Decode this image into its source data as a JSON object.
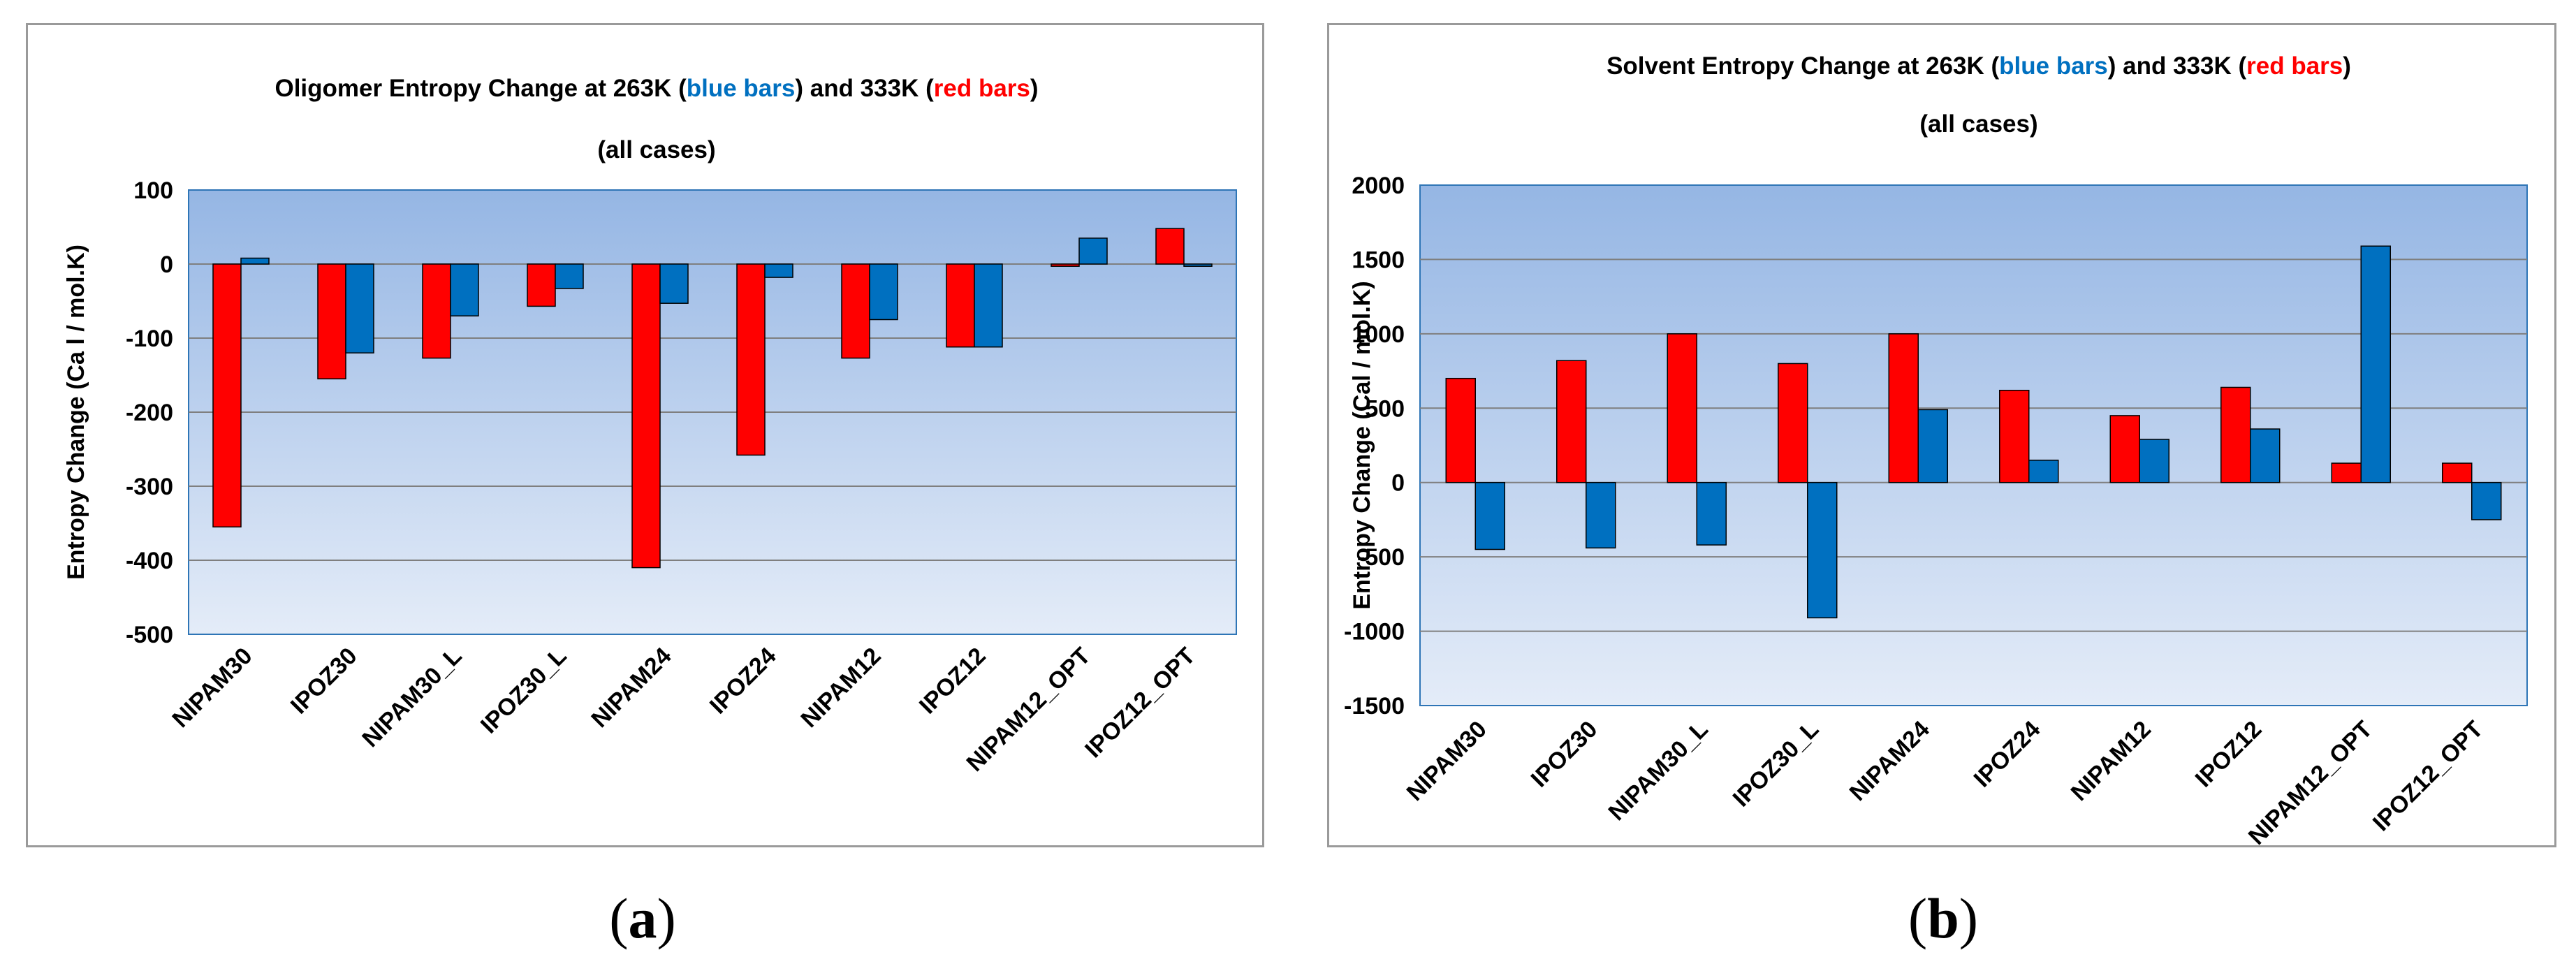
{
  "colors": {
    "red_series": "#ff0000",
    "blue_series": "#0070c0",
    "plot_top": "#95b6e4",
    "plot_bottom": "#e4ecf8",
    "gridline": "#7f7f7f"
  },
  "chart_data": [
    {
      "type": "bar",
      "panel_label": "a",
      "title_parts": {
        "prefix": "Oligomer Entropy  Change at 263K (",
        "blue": "blue bars",
        "middle": ") and 333K  (",
        "red": "red bars",
        "suffix": ")"
      },
      "subtitle": "(all cases)",
      "ylabel": "Entropy   Change (Ca  l / mol.K)",
      "xlabel": "",
      "ylim": [
        -500,
        100
      ],
      "yticks": [
        100,
        0,
        -100,
        -200,
        -300,
        -400,
        -500
      ],
      "categories": [
        "NIPAM30",
        "IPOZ30",
        "NIPAM30_L",
        "IPOZ30_L",
        "NIPAM24",
        "IPOZ24",
        "NIPAM12",
        "IPOZ12",
        "NIPAM12_OPT",
        "IPOZ12_OPT"
      ],
      "series": [
        {
          "name": "333K (red bars)",
          "color": "#ff0000",
          "values": [
            -355,
            -155,
            -127,
            -57,
            -410,
            -258,
            -127,
            -112,
            -3,
            48
          ]
        },
        {
          "name": "263K (blue bars)",
          "color": "#0070c0",
          "values": [
            8,
            -120,
            -70,
            -33,
            -53,
            -18,
            -75,
            -112,
            35,
            -3
          ]
        }
      ],
      "grid": true
    },
    {
      "type": "bar",
      "panel_label": "b",
      "title_parts": {
        "prefix": "Solvent  Entropy  Change at 263K (",
        "blue": "blue bars",
        "middle": ") and 333K (",
        "red": "red bars",
        "suffix": ")"
      },
      "subtitle": "(all cases)",
      "ylabel": "Entropy   Change (Cal / mol.K)",
      "xlabel": "",
      "ylim": [
        -1500,
        2000
      ],
      "yticks": [
        2000,
        1500,
        1000,
        500,
        0,
        -500,
        -1000,
        -1500
      ],
      "categories": [
        "NIPAM30",
        "IPOZ30",
        "NIPAM30_L",
        "IPOZ30_L",
        "NIPAM24",
        "IPOZ24",
        "NIPAM12",
        "IPOZ12",
        "NIPAM12_OPT",
        "IPOZ12_OPT"
      ],
      "series": [
        {
          "name": "333K (red bars)",
          "color": "#ff0000",
          "values": [
            700,
            820,
            1000,
            800,
            1000,
            620,
            450,
            640,
            130,
            130
          ]
        },
        {
          "name": "263K (blue bars)",
          "color": "#0070c0",
          "values": [
            -450,
            -440,
            -420,
            -910,
            490,
            150,
            290,
            360,
            1590,
            -250
          ]
        }
      ],
      "grid": true
    }
  ],
  "captions": [
    "a",
    "b"
  ]
}
